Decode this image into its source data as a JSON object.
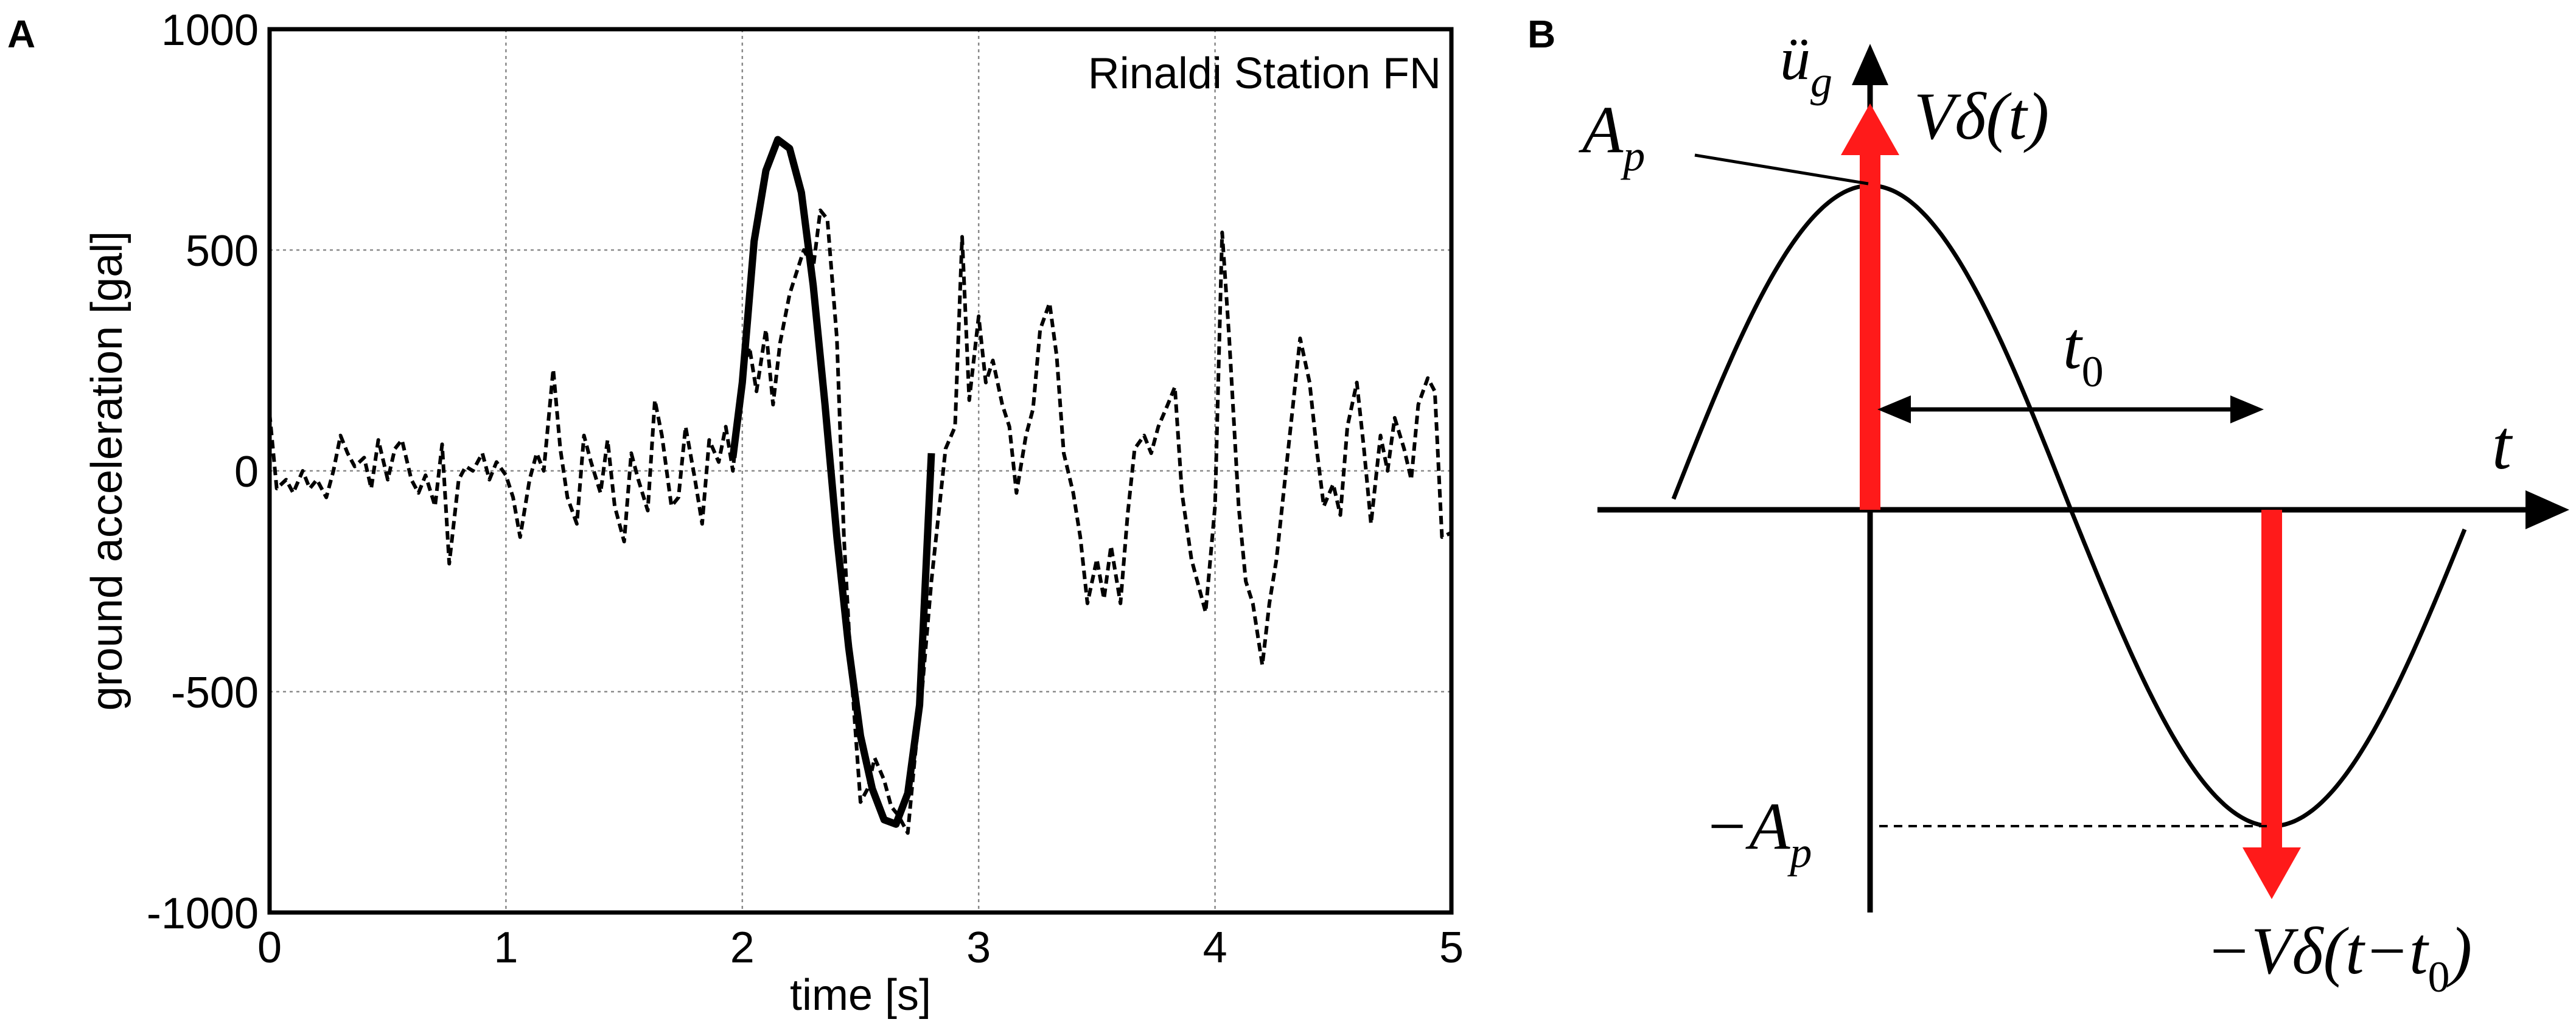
{
  "panel_a": {
    "label": "A",
    "chart_data": {
      "type": "line",
      "annotation": "Rinaldi Station FN",
      "xlabel": "time [s]",
      "ylabel": "ground acceleration [gal]",
      "xlim": [
        0,
        5
      ],
      "ylim": [
        -1000,
        1000
      ],
      "xticks": [
        0,
        1,
        2,
        3,
        4,
        5
      ],
      "yticks": [
        -1000,
        -500,
        0,
        500,
        1000
      ],
      "xtick_labels": [
        "0",
        "1",
        "2",
        "3",
        "4",
        "5"
      ],
      "ytick_labels": [
        "-1000",
        "-500",
        "0",
        "500",
        "1000"
      ],
      "grid": true,
      "series": [
        {
          "style": "dashed",
          "points": [
            [
              0.0,
              130
            ],
            [
              0.03,
              -40
            ],
            [
              0.07,
              -20
            ],
            [
              0.1,
              -50
            ],
            [
              0.14,
              0
            ],
            [
              0.17,
              -40
            ],
            [
              0.2,
              -20
            ],
            [
              0.24,
              -60
            ],
            [
              0.27,
              0
            ],
            [
              0.3,
              80
            ],
            [
              0.33,
              40
            ],
            [
              0.36,
              10
            ],
            [
              0.4,
              30
            ],
            [
              0.43,
              -40
            ],
            [
              0.46,
              70
            ],
            [
              0.5,
              -20
            ],
            [
              0.53,
              50
            ],
            [
              0.56,
              70
            ],
            [
              0.6,
              -20
            ],
            [
              0.63,
              -50
            ],
            [
              0.66,
              -10
            ],
            [
              0.7,
              -80
            ],
            [
              0.73,
              60
            ],
            [
              0.76,
              -210
            ],
            [
              0.8,
              -20
            ],
            [
              0.83,
              10
            ],
            [
              0.86,
              0
            ],
            [
              0.9,
              40
            ],
            [
              0.93,
              -20
            ],
            [
              0.96,
              20
            ],
            [
              1.0,
              -10
            ],
            [
              1.03,
              -60
            ],
            [
              1.06,
              -150
            ],
            [
              1.1,
              -20
            ],
            [
              1.13,
              40
            ],
            [
              1.16,
              0
            ],
            [
              1.2,
              230
            ],
            [
              1.23,
              50
            ],
            [
              1.26,
              -60
            ],
            [
              1.3,
              -120
            ],
            [
              1.33,
              80
            ],
            [
              1.36,
              20
            ],
            [
              1.4,
              -50
            ],
            [
              1.43,
              70
            ],
            [
              1.46,
              -80
            ],
            [
              1.5,
              -160
            ],
            [
              1.53,
              40
            ],
            [
              1.56,
              -20
            ],
            [
              1.6,
              -90
            ],
            [
              1.63,
              160
            ],
            [
              1.66,
              80
            ],
            [
              1.7,
              -80
            ],
            [
              1.73,
              -60
            ],
            [
              1.76,
              100
            ],
            [
              1.8,
              -20
            ],
            [
              1.83,
              -120
            ],
            [
              1.86,
              70
            ],
            [
              1.9,
              20
            ],
            [
              1.93,
              100
            ],
            [
              1.96,
              0
            ],
            [
              2.0,
              220
            ],
            [
              2.03,
              280
            ],
            [
              2.06,
              180
            ],
            [
              2.1,
              320
            ],
            [
              2.13,
              150
            ],
            [
              2.16,
              290
            ],
            [
              2.2,
              400
            ],
            [
              2.23,
              450
            ],
            [
              2.26,
              500
            ],
            [
              2.3,
              460
            ],
            [
              2.33,
              590
            ],
            [
              2.36,
              570
            ],
            [
              2.4,
              300
            ],
            [
              2.43,
              -150
            ],
            [
              2.46,
              -450
            ],
            [
              2.5,
              -750
            ],
            [
              2.53,
              -720
            ],
            [
              2.56,
              -650
            ],
            [
              2.6,
              -700
            ],
            [
              2.63,
              -760
            ],
            [
              2.66,
              -780
            ],
            [
              2.7,
              -820
            ],
            [
              2.73,
              -650
            ],
            [
              2.76,
              -500
            ],
            [
              2.8,
              -250
            ],
            [
              2.83,
              -100
            ],
            [
              2.86,
              50
            ],
            [
              2.9,
              100
            ],
            [
              2.93,
              530
            ],
            [
              2.96,
              160
            ],
            [
              3.0,
              350
            ],
            [
              3.03,
              200
            ],
            [
              3.06,
              250
            ],
            [
              3.1,
              150
            ],
            [
              3.13,
              100
            ],
            [
              3.16,
              -50
            ],
            [
              3.2,
              80
            ],
            [
              3.23,
              140
            ],
            [
              3.26,
              320
            ],
            [
              3.3,
              380
            ],
            [
              3.33,
              260
            ],
            [
              3.36,
              40
            ],
            [
              3.4,
              -50
            ],
            [
              3.43,
              -150
            ],
            [
              3.46,
              -300
            ],
            [
              3.5,
              -200
            ],
            [
              3.53,
              -290
            ],
            [
              3.56,
              -170
            ],
            [
              3.6,
              -300
            ],
            [
              3.63,
              -100
            ],
            [
              3.66,
              50
            ],
            [
              3.7,
              80
            ],
            [
              3.73,
              40
            ],
            [
              3.76,
              100
            ],
            [
              3.8,
              150
            ],
            [
              3.83,
              190
            ],
            [
              3.86,
              -50
            ],
            [
              3.9,
              -200
            ],
            [
              3.93,
              -260
            ],
            [
              3.96,
              -320
            ],
            [
              4.0,
              -80
            ],
            [
              4.03,
              540
            ],
            [
              4.06,
              300
            ],
            [
              4.1,
              -80
            ],
            [
              4.13,
              -250
            ],
            [
              4.16,
              -300
            ],
            [
              4.2,
              -440
            ],
            [
              4.23,
              -300
            ],
            [
              4.26,
              -200
            ],
            [
              4.3,
              0
            ],
            [
              4.33,
              150
            ],
            [
              4.36,
              300
            ],
            [
              4.4,
              200
            ],
            [
              4.43,
              50
            ],
            [
              4.46,
              -80
            ],
            [
              4.5,
              -30
            ],
            [
              4.53,
              -100
            ],
            [
              4.56,
              100
            ],
            [
              4.6,
              200
            ],
            [
              4.63,
              50
            ],
            [
              4.66,
              -120
            ],
            [
              4.7,
              80
            ],
            [
              4.73,
              0
            ],
            [
              4.76,
              120
            ],
            [
              4.8,
              50
            ],
            [
              4.83,
              -20
            ],
            [
              4.86,
              150
            ],
            [
              4.9,
              210
            ],
            [
              4.93,
              180
            ],
            [
              4.96,
              -150
            ],
            [
              5.0,
              -140
            ]
          ]
        },
        {
          "style": "solid",
          "points": [
            [
              1.96,
              30
            ],
            [
              2.0,
              200
            ],
            [
              2.05,
              520
            ],
            [
              2.1,
              680
            ],
            [
              2.15,
              750
            ],
            [
              2.2,
              730
            ],
            [
              2.25,
              630
            ],
            [
              2.3,
              420
            ],
            [
              2.35,
              150
            ],
            [
              2.4,
              -150
            ],
            [
              2.45,
              -400
            ],
            [
              2.5,
              -600
            ],
            [
              2.55,
              -720
            ],
            [
              2.6,
              -790
            ],
            [
              2.65,
              -800
            ],
            [
              2.7,
              -730
            ],
            [
              2.75,
              -530
            ],
            [
              2.8,
              40
            ]
          ]
        }
      ]
    }
  },
  "panel_b": {
    "label": "B",
    "chart_data": {
      "type": "diagram",
      "y_axis_label": "ü",
      "y_axis_sub": "g",
      "x_axis_label": "t",
      "peak_label": "A",
      "peak_sub": "p",
      "trough_label": "−A",
      "trough_sub": "p",
      "impulse_pos": "Vδ(t)",
      "impulse_neg": "−Vδ(t−t",
      "impulse_neg_sub": "0",
      "impulse_neg_close": ")",
      "interval_label": "t",
      "interval_sub": "0",
      "colors": {
        "impulse": "#ff1a1a",
        "curve": "#000000"
      }
    }
  }
}
